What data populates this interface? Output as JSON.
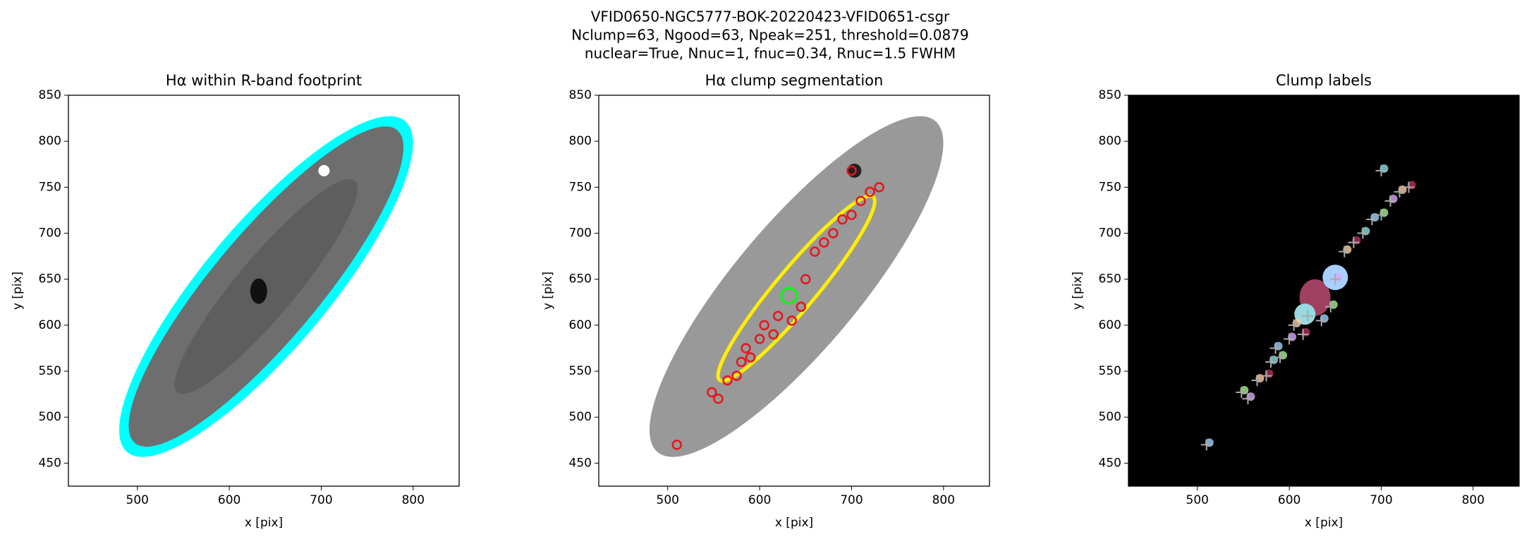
{
  "suptitle": [
    "VFID0650-NGC5777-BOK-20220423-VFID0651-csgr",
    "Nclump=63, Ngood=63, Npeak=251, threshold=0.0879",
    "nuclear=True, Nnuc=1, fnuc=0.34, Rnuc=1.5 FWHM"
  ],
  "chart_data": [
    {
      "type": "image",
      "title": "Hα within R-band footprint",
      "xlabel": "x [pix]",
      "ylabel": "y [pix]",
      "xlim": [
        425,
        850
      ],
      "ylim": [
        425,
        850
      ],
      "xticks": [
        500,
        600,
        700,
        800
      ],
      "yticks": [
        450,
        500,
        550,
        600,
        650,
        700,
        750,
        800,
        850
      ]
    },
    {
      "type": "image",
      "title": "Hα clump segmentation",
      "xlabel": "x [pix]",
      "ylabel": "y [pix]",
      "xlim": [
        425,
        850
      ],
      "ylim": [
        425,
        850
      ],
      "xticks": [
        500,
        600,
        700,
        800
      ],
      "yticks": [
        450,
        500,
        550,
        600,
        650,
        700,
        750,
        800,
        850
      ],
      "points": {
        "color": "#e8141c",
        "x": [
          510,
          548,
          555,
          565,
          575,
          580,
          585,
          590,
          600,
          605,
          615,
          620,
          635,
          645,
          650,
          660,
          670,
          680,
          690,
          700,
          710,
          720,
          730,
          700
        ],
        "y": [
          470,
          527,
          520,
          540,
          545,
          560,
          575,
          565,
          585,
          600,
          590,
          610,
          605,
          620,
          650,
          680,
          690,
          700,
          715,
          720,
          735,
          745,
          750,
          768
        ]
      }
    },
    {
      "type": "image",
      "title": "Clump labels",
      "xlabel": "x [pix]",
      "ylabel": "y [pix]",
      "xlim": [
        425,
        850
      ],
      "ylim": [
        425,
        850
      ],
      "xticks": [
        500,
        600,
        700,
        800
      ],
      "yticks": [
        450,
        500,
        550,
        600,
        650,
        700,
        750,
        800,
        850
      ]
    }
  ]
}
